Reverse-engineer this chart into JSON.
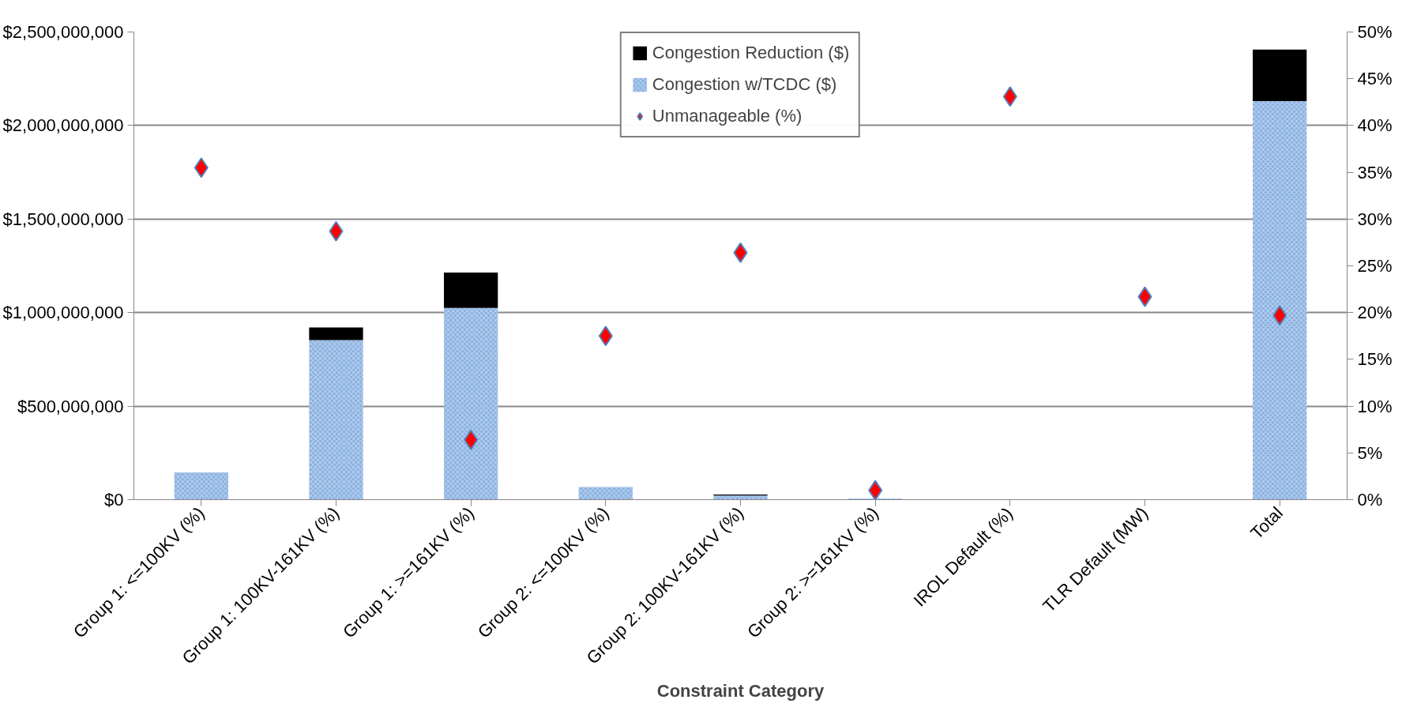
{
  "chart_data": {
    "type": "bar",
    "stacked": true,
    "xlabel": "Constraint Category",
    "categories": [
      "Group 1: <=100KV (%)",
      "Group 1: 100KV-161KV (%)",
      "Group 1: >=161KV (%)",
      "Group 2: <=100KV (%)",
      "Group 2: 100KV-161KV (%)",
      "Group 2: >=161KV (%)",
      "IROL Default (%)",
      "TLR Default (MW)",
      "Total"
    ],
    "series": [
      {
        "name": "Congestion w/TCDC ($)",
        "color": "#8db3e2",
        "values": [
          146000000,
          853000000,
          1025000000,
          68000000,
          22000000,
          6000000,
          null,
          null,
          2131000000
        ]
      },
      {
        "name": "Congestion Reduction ($)",
        "color": "#000000",
        "values": [
          null,
          68000000,
          189000000,
          null,
          5000000,
          null,
          null,
          null,
          275000000
        ]
      },
      {
        "name": "Unmanageable (%)",
        "type": "scatter",
        "axis": "y2",
        "marker": "diamond",
        "color": "#ff0000",
        "values": [
          35.5,
          28.7,
          6.4,
          17.5,
          26.4,
          1.0,
          43.1,
          21.7,
          19.7
        ]
      }
    ],
    "ylim": [
      0,
      2500000000
    ],
    "yticks": [
      {
        "value": 0,
        "label": "$0"
      },
      {
        "value": 500000000,
        "label": "$500,000,000"
      },
      {
        "value": 1000000000,
        "label": "$1,000,000,000"
      },
      {
        "value": 1500000000,
        "label": "$1,500,000,000"
      },
      {
        "value": 2000000000,
        "label": "$2,000,000,000"
      },
      {
        "value": 2500000000,
        "label": "$2,500,000,000"
      }
    ],
    "y2lim": [
      0,
      50
    ],
    "y2ticks": [
      {
        "value": 0,
        "label": "0%"
      },
      {
        "value": 5,
        "label": "5%"
      },
      {
        "value": 10,
        "label": "10%"
      },
      {
        "value": 15,
        "label": "15%"
      },
      {
        "value": 20,
        "label": "20%"
      },
      {
        "value": 25,
        "label": "25%"
      },
      {
        "value": 30,
        "label": "30%"
      },
      {
        "value": 35,
        "label": "35%"
      },
      {
        "value": 40,
        "label": "40%"
      },
      {
        "value": 45,
        "label": "45%"
      },
      {
        "value": 50,
        "label": "50%"
      }
    ],
    "grid": "y",
    "legend": "top"
  }
}
